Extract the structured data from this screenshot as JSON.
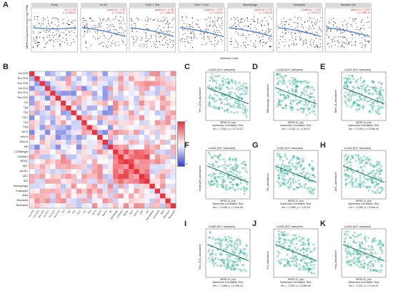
{
  "panel_letters": {
    "A": "A",
    "B": "B",
    "C": "C",
    "D": "D",
    "E": "E",
    "F": "F",
    "G": "G",
    "H": "H",
    "I": "I",
    "J": "J",
    "K": "K"
  },
  "timer": {
    "ylabel": "MRPL12 Expression Level (log2 TPM)",
    "gene": "LUAD",
    "xlabel": "Infiltration Level",
    "panels": [
      {
        "title": "Purity",
        "stat1": "cor = 0.106",
        "stat2": "p = 1.89e-02"
      },
      {
        "title": "B Cell",
        "stat1": "partial.cor = -0.26",
        "stat2": "p = 5.42e-10"
      },
      {
        "title": "CD8+ T Cell",
        "stat1": "partial.cor = -0.184",
        "stat2": "p = 3.83e-05"
      },
      {
        "title": "CD4+ T Cell",
        "stat1": "partial.cor = -0.257",
        "stat2": "p = 9.32e-09"
      },
      {
        "title": "Macrophage",
        "stat1": "partial.cor = -0.25",
        "stat2": "p = 2.28e-08"
      },
      {
        "title": "Neutrophil",
        "stat1": "partial.cor = -0.224",
        "stat2": "p = 5.37e-07"
      },
      {
        "title": "Dendritic Cell",
        "stat1": "partial.cor = -0.294",
        "stat2": "p = 3.38e-11"
      }
    ]
  },
  "heatmap": {
    "rows": [
      "Act CD8",
      "Tcm CD8",
      "Tem CD8",
      "Act CD4",
      "Tcm CD4",
      "Tem CD4",
      "Tfh",
      "Tgd",
      "Th1",
      "Th17",
      "Th2",
      "Treg",
      "Act B",
      "Imm B",
      "Mem B",
      "NK",
      "CD56bright",
      "CD56dim",
      "MDSC",
      "NKT",
      "Act DC",
      "pDC",
      "iDC",
      "Macrophage",
      "Eosinophil",
      "Mast",
      "Monocyte",
      "Neutrophil"
    ],
    "legend_max": "1",
    "legend_mid": "0",
    "legend_min": "-1",
    "colors": {
      "pos": "#e8333d",
      "neg": "#2f3fd6"
    }
  },
  "scatters": [
    {
      "letter": "C",
      "title": "LUAD (517 samples)",
      "ylabel": "Tem_CD8_abundance",
      "xlabel": "MRPL12_exp",
      "test": "Spearman Correlation Test:",
      "stat": "rho = -0.301, p = 3.77e-12"
    },
    {
      "letter": "D",
      "title": "LUAD (517 samples)",
      "ylabel": "Macrophage_abundance",
      "xlabel": "MRPL12_exp",
      "test": "Spearman Correlation Test:",
      "stat": "rho = -0.221, p = 4.3e-07"
    },
    {
      "letter": "E",
      "title": "LUAD (517 samples)",
      "ylabel": "Mem_B_abundance",
      "xlabel": "MRPL12_exp",
      "test": "Spearman Correlation Test:",
      "stat": "rho = -0.199, p = 5.09e-06"
    },
    {
      "letter": "F",
      "title": "LUAD (517 samples)",
      "ylabel": "Neutrophil_abundance",
      "xlabel": "MRPL12_exp",
      "test": "Spearman Correlation Test:",
      "stat": "rho = -0.189, p = 1.52e-05"
    },
    {
      "letter": "G",
      "title": "LUAD (517 samples)",
      "ylabel": "NK_abundance",
      "xlabel": "MRPL12_exp",
      "test": "Spearman Correlation Test:",
      "stat": "rho = -0.385, p = 2.2e-16"
    },
    {
      "letter": "H",
      "title": "LUAD (517 samples)",
      "ylabel": "pDC_abundance",
      "xlabel": "MRPL12_exp",
      "test": "Spearman Correlation Test:",
      "stat": "rho = -0.285, p = 5.04e-11"
    },
    {
      "letter": "I",
      "title": "LUAD (517 samples)",
      "ylabel": "Tem_CD4_abundance",
      "xlabel": "MRPL12_exp",
      "test": "Spearman Correlation Test:",
      "stat": "rho = -0.268, p = 6.76e-10"
    },
    {
      "letter": "J",
      "title": "LUAD (517 samples)",
      "ylabel": "Th1_abundance",
      "xlabel": "MRPL12_exp",
      "test": "Spearman Correlation Test:",
      "stat": "rho = -0.253, p = 6.06e-09"
    },
    {
      "letter": "K",
      "title": "LUAD (517 samples)",
      "ylabel": "Treg_abundance",
      "xlabel": "MRPL12_exp",
      "test": "Spearman Correlation Test:",
      "stat": "rho = -0.231, p = 1.14e-07"
    }
  ],
  "chart_data": [
    {
      "type": "scatter",
      "title": "LUAD (517 samples)",
      "xlabel": "MRPL12_exp",
      "ylabel": "Tem_CD8_abundance",
      "rho": -0.301,
      "p": "3.77e-12"
    },
    {
      "type": "scatter",
      "title": "LUAD (517 samples)",
      "xlabel": "MRPL12_exp",
      "ylabel": "Macrophage_abundance",
      "rho": -0.221,
      "p": "4.3e-07"
    },
    {
      "type": "scatter",
      "title": "LUAD (517 samples)",
      "xlabel": "MRPL12_exp",
      "ylabel": "Mem_B_abundance",
      "rho": -0.199,
      "p": "5.09e-06"
    },
    {
      "type": "scatter",
      "title": "LUAD (517 samples)",
      "xlabel": "MRPL12_exp",
      "ylabel": "Neutrophil_abundance",
      "rho": -0.189,
      "p": "1.52e-05"
    },
    {
      "type": "scatter",
      "title": "LUAD (517 samples)",
      "xlabel": "MRPL12_exp",
      "ylabel": "NK_abundance",
      "rho": -0.385,
      "p": "2.2e-16"
    },
    {
      "type": "scatter",
      "title": "LUAD (517 samples)",
      "xlabel": "MRPL12_exp",
      "ylabel": "pDC_abundance",
      "rho": -0.285,
      "p": "5.04e-11"
    },
    {
      "type": "scatter",
      "title": "LUAD (517 samples)",
      "xlabel": "MRPL12_exp",
      "ylabel": "Tem_CD4_abundance",
      "rho": -0.268,
      "p": "6.76e-10"
    },
    {
      "type": "scatter",
      "title": "LUAD (517 samples)",
      "xlabel": "MRPL12_exp",
      "ylabel": "Th1_abundance",
      "rho": -0.253,
      "p": "6.06e-09"
    },
    {
      "type": "scatter",
      "title": "LUAD (517 samples)",
      "xlabel": "MRPL12_exp",
      "ylabel": "Treg_abundance",
      "rho": -0.231,
      "p": "1.14e-07"
    }
  ]
}
